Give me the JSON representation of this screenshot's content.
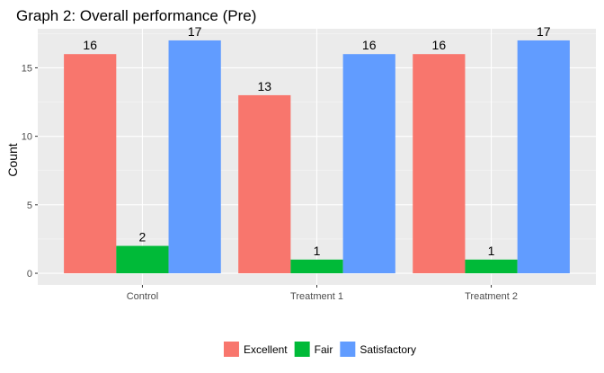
{
  "chart_data": {
    "type": "bar",
    "title": "Graph 2: Overall performance (Pre)",
    "xlabel": "",
    "ylabel": "Count",
    "categories": [
      "Control",
      "Treatment 1",
      "Treatment 2"
    ],
    "series": [
      {
        "name": "Excellent",
        "values": [
          16,
          13,
          16
        ],
        "color": "#F8766D"
      },
      {
        "name": "Fair",
        "values": [
          2,
          1,
          1
        ],
        "color": "#00BA38"
      },
      {
        "name": "Satisfactory",
        "values": [
          17,
          16,
          17
        ],
        "color": "#619CFF"
      }
    ],
    "ylim": [
      -0.85,
      17.85
    ],
    "yticks": [
      0,
      5,
      10,
      15
    ],
    "grid": true,
    "legend_position": "bottom",
    "panel_background": "#EBEBEB"
  }
}
